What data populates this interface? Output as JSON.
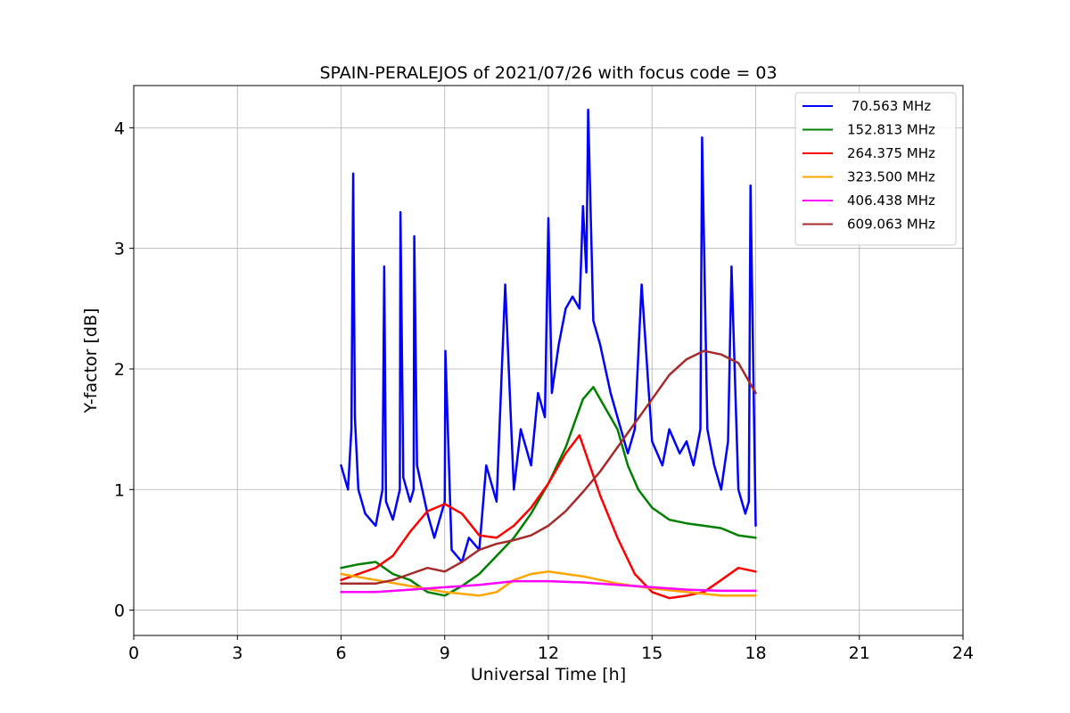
{
  "chart_data": {
    "type": "line",
    "title": "SPAIN-PERALEJOS of 2021/07/26 with focus code = 03",
    "xlabel": "Universal Time [h]",
    "ylabel": "Y-factor [dB]",
    "xlim": [
      0,
      24
    ],
    "ylim": [
      -0.21,
      4.35
    ],
    "xticks": [
      0,
      3,
      6,
      9,
      12,
      15,
      18,
      21,
      24
    ],
    "xtick_labels": [
      "0",
      "3",
      "6",
      "9",
      "12",
      "15",
      "18",
      "21",
      "24"
    ],
    "yticks": [
      0,
      1,
      2,
      3,
      4
    ],
    "ytick_labels": [
      "0",
      "1",
      "2",
      "3",
      "4"
    ],
    "grid": true,
    "legend_position": "top-right",
    "series": [
      {
        "name": " 70.563 MHz",
        "color": "#0000ff",
        "x": [
          6.0,
          6.2,
          6.3,
          6.35,
          6.4,
          6.5,
          6.7,
          7.0,
          7.2,
          7.25,
          7.3,
          7.5,
          7.7,
          7.72,
          7.8,
          8.0,
          8.1,
          8.12,
          8.2,
          8.5,
          8.7,
          9.0,
          9.02,
          9.2,
          9.5,
          9.7,
          10.0,
          10.2,
          10.5,
          10.75,
          11.0,
          11.2,
          11.5,
          11.7,
          11.9,
          12.0,
          12.1,
          12.3,
          12.5,
          12.7,
          12.9,
          13.0,
          13.1,
          13.15,
          13.3,
          13.5,
          13.8,
          14.0,
          14.3,
          14.5,
          14.7,
          15.0,
          15.3,
          15.5,
          15.8,
          16.0,
          16.2,
          16.4,
          16.45,
          16.6,
          16.8,
          17.0,
          17.2,
          17.3,
          17.5,
          17.7,
          17.8,
          17.85,
          18.0
        ],
        "y": [
          1.2,
          1.0,
          1.5,
          3.62,
          1.6,
          1.0,
          0.8,
          0.7,
          1.0,
          2.85,
          0.9,
          0.75,
          1.0,
          3.3,
          1.1,
          0.9,
          1.0,
          3.1,
          1.2,
          0.8,
          0.6,
          0.9,
          2.15,
          0.5,
          0.4,
          0.6,
          0.5,
          1.2,
          0.9,
          2.7,
          1.0,
          1.5,
          1.2,
          1.8,
          1.6,
          3.25,
          1.8,
          2.2,
          2.5,
          2.6,
          2.5,
          3.35,
          2.8,
          4.15,
          2.4,
          2.2,
          1.8,
          1.6,
          1.3,
          1.5,
          2.7,
          1.4,
          1.2,
          1.5,
          1.3,
          1.4,
          1.2,
          1.5,
          3.92,
          1.5,
          1.2,
          1.0,
          1.4,
          2.85,
          1.0,
          0.8,
          0.9,
          3.52,
          0.7
        ]
      },
      {
        "name": "152.813 MHz",
        "color": "#008000",
        "x": [
          6.0,
          6.5,
          7.0,
          7.5,
          8.0,
          8.5,
          9.0,
          9.5,
          10.0,
          10.5,
          11.0,
          11.5,
          12.0,
          12.5,
          13.0,
          13.3,
          13.6,
          14.0,
          14.3,
          14.6,
          15.0,
          15.5,
          16.0,
          16.5,
          17.0,
          17.5,
          18.0
        ],
        "y": [
          0.35,
          0.38,
          0.4,
          0.3,
          0.25,
          0.15,
          0.12,
          0.2,
          0.3,
          0.45,
          0.6,
          0.8,
          1.05,
          1.35,
          1.75,
          1.85,
          1.7,
          1.5,
          1.2,
          1.0,
          0.85,
          0.75,
          0.72,
          0.7,
          0.68,
          0.62,
          0.6
        ]
      },
      {
        "name": "264.375 MHz",
        "color": "#ff0000",
        "x": [
          6.0,
          6.5,
          7.0,
          7.5,
          8.0,
          8.5,
          9.0,
          9.5,
          10.0,
          10.5,
          11.0,
          11.5,
          12.0,
          12.5,
          12.9,
          13.2,
          13.5,
          14.0,
          14.5,
          15.0,
          15.5,
          16.0,
          16.5,
          17.0,
          17.5,
          18.0
        ],
        "y": [
          0.25,
          0.3,
          0.35,
          0.45,
          0.65,
          0.82,
          0.88,
          0.8,
          0.62,
          0.6,
          0.7,
          0.85,
          1.05,
          1.3,
          1.45,
          1.2,
          0.95,
          0.6,
          0.3,
          0.15,
          0.1,
          0.12,
          0.15,
          0.25,
          0.35,
          0.32
        ]
      },
      {
        "name": "323.500 MHz",
        "color": "#ffa500",
        "x": [
          6.0,
          7.0,
          8.0,
          9.0,
          10.0,
          10.5,
          11.0,
          11.5,
          12.0,
          12.5,
          13.0,
          14.0,
          15.0,
          16.0,
          17.0,
          18.0
        ],
        "y": [
          0.3,
          0.25,
          0.2,
          0.15,
          0.12,
          0.15,
          0.25,
          0.3,
          0.32,
          0.3,
          0.28,
          0.22,
          0.18,
          0.15,
          0.12,
          0.12
        ]
      },
      {
        "name": "406.438 MHz",
        "color": "#ff00ff",
        "x": [
          6.0,
          7.0,
          8.0,
          9.0,
          10.0,
          11.0,
          12.0,
          13.0,
          14.0,
          15.0,
          16.0,
          17.0,
          18.0
        ],
        "y": [
          0.15,
          0.15,
          0.17,
          0.19,
          0.21,
          0.24,
          0.24,
          0.23,
          0.21,
          0.19,
          0.17,
          0.16,
          0.16
        ]
      },
      {
        "name": "609.063 MHz",
        "color": "#a52a2a",
        "x": [
          6.0,
          6.5,
          7.0,
          7.5,
          8.0,
          8.5,
          9.0,
          9.5,
          10.0,
          10.5,
          11.0,
          11.5,
          12.0,
          12.5,
          13.0,
          13.5,
          14.0,
          14.5,
          15.0,
          15.5,
          16.0,
          16.5,
          17.0,
          17.5,
          18.0
        ],
        "y": [
          0.22,
          0.22,
          0.22,
          0.25,
          0.3,
          0.35,
          0.32,
          0.4,
          0.5,
          0.55,
          0.58,
          0.62,
          0.7,
          0.82,
          0.98,
          1.15,
          1.35,
          1.55,
          1.75,
          1.95,
          2.08,
          2.15,
          2.12,
          2.05,
          1.8
        ]
      }
    ]
  }
}
